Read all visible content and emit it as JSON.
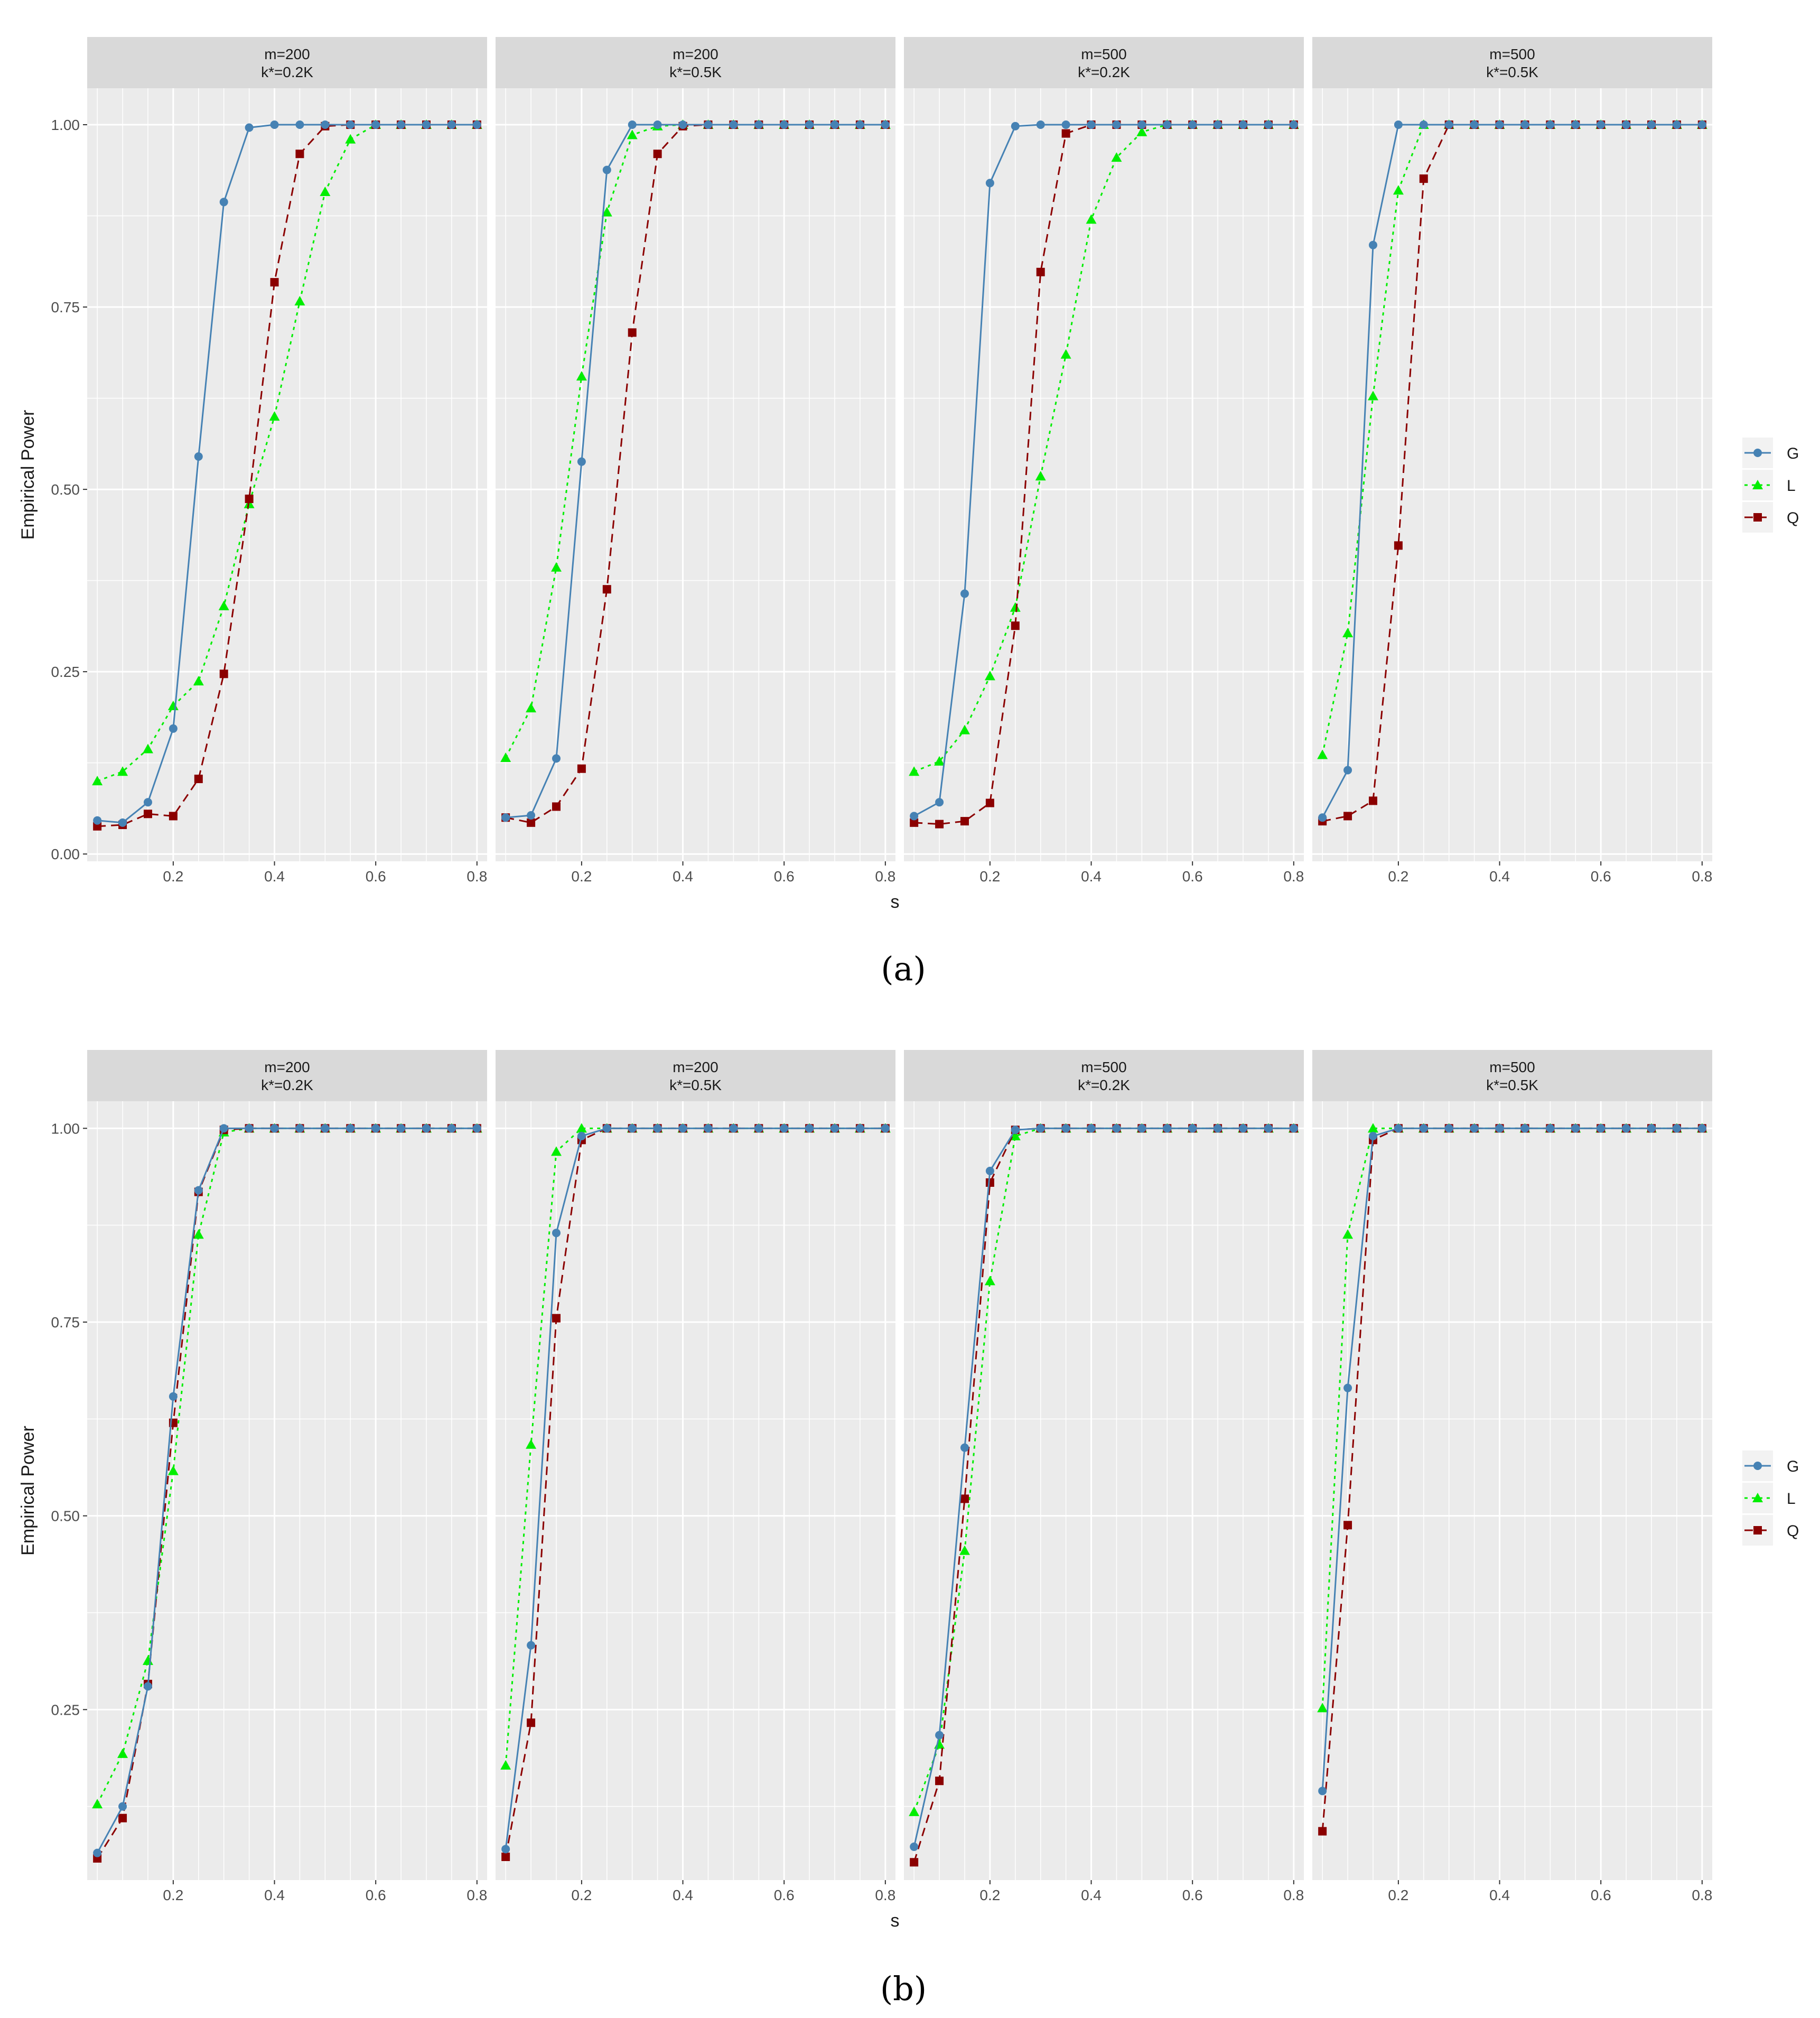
{
  "colors": {
    "panel_bg": "#EBEBEB",
    "strip_bg": "#D9D9D9",
    "grid": "#FFFFFF",
    "G": "#4682B4",
    "L": "#00EE00",
    "Q": "#8B0000",
    "axis_text": "#4D4D4D",
    "title_text": "#1A1A1A"
  },
  "legend": {
    "items": [
      {
        "key": "G",
        "label": "G",
        "shape": "circle",
        "dash": "solid"
      },
      {
        "key": "L",
        "label": "L",
        "shape": "triangle",
        "dash": "dotted"
      },
      {
        "key": "Q",
        "label": "Q",
        "shape": "square",
        "dash": "dashed"
      }
    ]
  },
  "chart_data": [
    {
      "type": "line",
      "caption": "(a)",
      "xlabel": "s",
      "ylabel": "Empirical Power",
      "xlim": [
        0.03,
        0.82
      ],
      "ylim": [
        -0.01,
        1.05
      ],
      "xticks": [
        "0.2",
        "0.4",
        "0.6",
        "0.8"
      ],
      "yticks": [
        "0.00",
        "0.25",
        "0.50",
        "0.75",
        "1.00"
      ],
      "x": [
        0.05,
        0.1,
        0.15,
        0.2,
        0.25,
        0.3,
        0.35,
        0.4,
        0.45,
        0.5,
        0.55,
        0.6,
        0.65,
        0.7,
        0.75,
        0.8
      ],
      "panels": [
        {
          "strip": [
            "m=200",
            "k*=0.2K"
          ],
          "series": [
            {
              "name": "G",
              "values": [
                0.046,
                0.043,
                0.071,
                0.172,
                0.545,
                0.894,
                0.996,
                1,
                1,
                1,
                1,
                1,
                1,
                1,
                1,
                1
              ]
            },
            {
              "name": "L",
              "values": [
                0.1,
                0.113,
                0.144,
                0.203,
                0.237,
                0.34,
                0.48,
                0.6,
                0.758,
                0.908,
                0.98,
                1,
                1,
                1,
                1,
                1
              ]
            },
            {
              "name": "Q",
              "values": [
                0.038,
                0.04,
                0.055,
                0.052,
                0.103,
                0.247,
                0.487,
                0.784,
                0.96,
                0.998,
                1,
                1,
                1,
                1,
                1,
                1
              ]
            }
          ]
        },
        {
          "strip": [
            "m=200",
            "k*=0.5K"
          ],
          "series": [
            {
              "name": "G",
              "values": [
                0.05,
                0.053,
                0.131,
                0.538,
                0.938,
                1,
                1,
                1,
                1,
                1,
                1,
                1,
                1,
                1,
                1,
                1
              ]
            },
            {
              "name": "L",
              "values": [
                0.132,
                0.2,
                0.393,
                0.655,
                0.88,
                0.986,
                0.998,
                1,
                1,
                1,
                1,
                1,
                1,
                1,
                1,
                1
              ]
            },
            {
              "name": "Q",
              "values": [
                0.05,
                0.043,
                0.065,
                0.117,
                0.363,
                0.715,
                0.96,
                0.998,
                1,
                1,
                1,
                1,
                1,
                1,
                1,
                1
              ]
            }
          ]
        },
        {
          "strip": [
            "m=500",
            "k*=0.2K"
          ],
          "series": [
            {
              "name": "G",
              "values": [
                0.052,
                0.071,
                0.357,
                0.92,
                0.998,
                1,
                1,
                1,
                1,
                1,
                1,
                1,
                1,
                1,
                1,
                1
              ]
            },
            {
              "name": "L",
              "values": [
                0.113,
                0.127,
                0.17,
                0.244,
                0.338,
                0.518,
                0.685,
                0.87,
                0.955,
                0.99,
                1,
                1,
                1,
                1,
                1,
                1
              ]
            },
            {
              "name": "Q",
              "values": [
                0.043,
                0.041,
                0.045,
                0.07,
                0.313,
                0.798,
                0.988,
                1,
                1,
                1,
                1,
                1,
                1,
                1,
                1,
                1
              ]
            }
          ]
        },
        {
          "strip": [
            "m=500",
            "k*=0.5K"
          ],
          "series": [
            {
              "name": "G",
              "values": [
                0.05,
                0.115,
                0.835,
                1,
                1,
                1,
                1,
                1,
                1,
                1,
                1,
                1,
                1,
                1,
                1,
                1
              ]
            },
            {
              "name": "L",
              "values": [
                0.136,
                0.303,
                0.628,
                0.91,
                1,
                1,
                1,
                1,
                1,
                1,
                1,
                1,
                1,
                1,
                1,
                1
              ]
            },
            {
              "name": "Q",
              "values": [
                0.045,
                0.052,
                0.073,
                0.423,
                0.926,
                1,
                1,
                1,
                1,
                1,
                1,
                1,
                1,
                1,
                1,
                1
              ]
            }
          ]
        }
      ]
    },
    {
      "type": "line",
      "caption": "(b)",
      "xlabel": "s",
      "ylabel": "Empirical Power",
      "xlim": [
        0.03,
        0.82
      ],
      "ylim": [
        0.03,
        1.035
      ],
      "xticks": [
        "0.2",
        "0.4",
        "0.6",
        "0.8"
      ],
      "yticks": [
        "0.25",
        "0.50",
        "0.75",
        "1.00"
      ],
      "x": [
        0.05,
        0.1,
        0.15,
        0.2,
        0.25,
        0.3,
        0.35,
        0.4,
        0.45,
        0.5,
        0.55,
        0.6,
        0.65,
        0.7,
        0.75,
        0.8
      ],
      "panels": [
        {
          "strip": [
            "m=200",
            "k*=0.2K"
          ],
          "series": [
            {
              "name": "G",
              "values": [
                0.065,
                0.125,
                0.28,
                0.654,
                0.92,
                1,
                1,
                1,
                1,
                1,
                1,
                1,
                1,
                1,
                1,
                1
              ]
            },
            {
              "name": "L",
              "values": [
                0.128,
                0.193,
                0.313,
                0.558,
                0.863,
                0.995,
                1,
                1,
                1,
                1,
                1,
                1,
                1,
                1,
                1,
                1
              ]
            },
            {
              "name": "Q",
              "values": [
                0.058,
                0.11,
                0.283,
                0.62,
                0.918,
                0.998,
                1,
                1,
                1,
                1,
                1,
                1,
                1,
                1,
                1,
                1
              ]
            }
          ]
        },
        {
          "strip": [
            "m=200",
            "k*=0.5K"
          ],
          "series": [
            {
              "name": "G",
              "values": [
                0.07,
                0.333,
                0.865,
                0.99,
                1,
                1,
                1,
                1,
                1,
                1,
                1,
                1,
                1,
                1,
                1,
                1
              ]
            },
            {
              "name": "L",
              "values": [
                0.178,
                0.592,
                0.97,
                1,
                1,
                1,
                1,
                1,
                1,
                1,
                1,
                1,
                1,
                1,
                1,
                1
              ]
            },
            {
              "name": "Q",
              "values": [
                0.06,
                0.233,
                0.755,
                0.985,
                1,
                1,
                1,
                1,
                1,
                1,
                1,
                1,
                1,
                1,
                1,
                1
              ]
            }
          ]
        },
        {
          "strip": [
            "m=500",
            "k*=0.2K"
          ],
          "series": [
            {
              "name": "G",
              "values": [
                0.073,
                0.217,
                0.588,
                0.945,
                0.998,
                1,
                1,
                1,
                1,
                1,
                1,
                1,
                1,
                1,
                1,
                1
              ]
            },
            {
              "name": "L",
              "values": [
                0.118,
                0.205,
                0.455,
                0.803,
                0.99,
                1,
                1,
                1,
                1,
                1,
                1,
                1,
                1,
                1,
                1,
                1
              ]
            },
            {
              "name": "Q",
              "values": [
                0.053,
                0.158,
                0.522,
                0.93,
                0.998,
                1,
                1,
                1,
                1,
                1,
                1,
                1,
                1,
                1,
                1,
                1
              ]
            }
          ]
        },
        {
          "strip": [
            "m=500",
            "k*=0.5K"
          ],
          "series": [
            {
              "name": "G",
              "values": [
                0.145,
                0.665,
                0.99,
                1,
                1,
                1,
                1,
                1,
                1,
                1,
                1,
                1,
                1,
                1,
                1,
                1
              ]
            },
            {
              "name": "L",
              "values": [
                0.252,
                0.863,
                1,
                1,
                1,
                1,
                1,
                1,
                1,
                1,
                1,
                1,
                1,
                1,
                1,
                1
              ]
            },
            {
              "name": "Q",
              "values": [
                0.093,
                0.488,
                0.985,
                1,
                1,
                1,
                1,
                1,
                1,
                1,
                1,
                1,
                1,
                1,
                1,
                1
              ]
            }
          ]
        }
      ]
    }
  ]
}
